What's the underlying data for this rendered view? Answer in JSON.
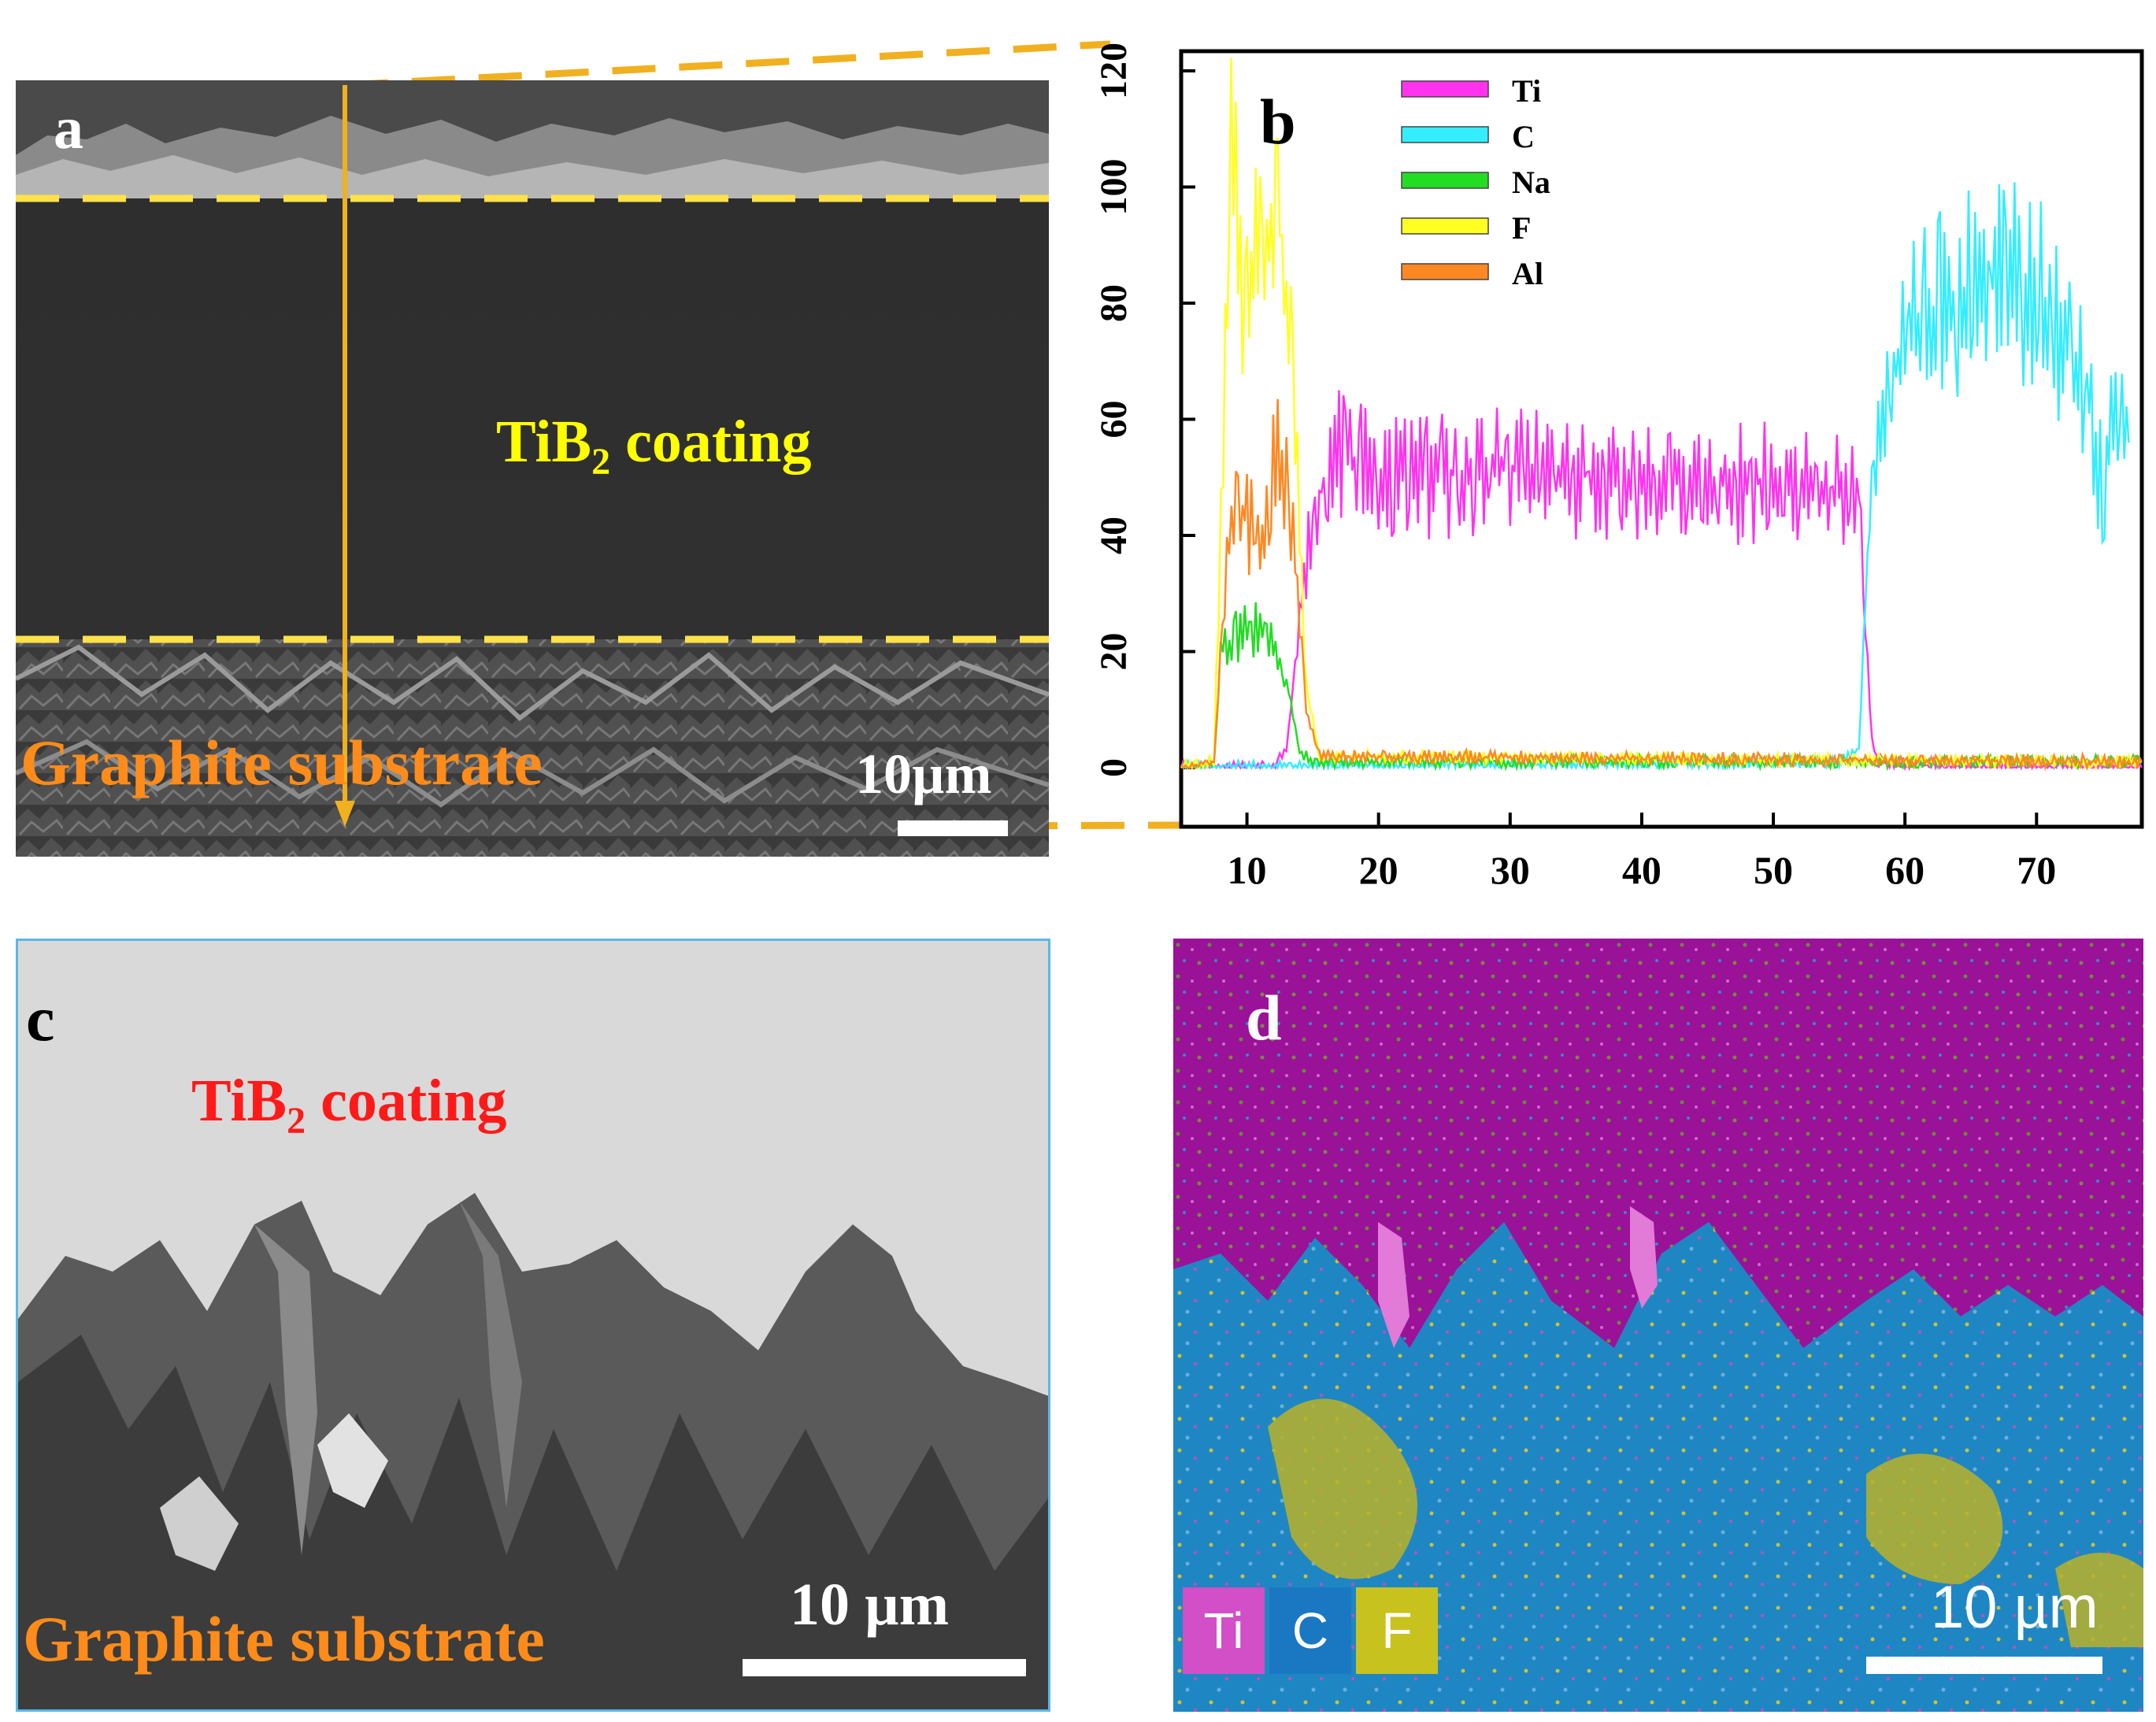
{
  "panel_a": {
    "letter": "a",
    "coating_label_main": "TiB",
    "coating_label_sub": "2",
    "coating_label_tail": " coating",
    "substrate_label": "Graphite substrate",
    "scale_bar": "10µm"
  },
  "panel_b": {
    "letter": "b"
  },
  "panel_c": {
    "letter": "c",
    "coating_label_main": "TiB",
    "coating_label_sub": "2",
    "coating_label_tail": " coating",
    "substrate_label": "Graphite substrate",
    "scale_bar": "10 µm"
  },
  "panel_d": {
    "letter": "d",
    "scale_bar": "10 µm",
    "legend": [
      {
        "label": "Ti",
        "color": "#d24fc7"
      },
      {
        "label": "C",
        "color": "#1a78c2"
      },
      {
        "label": "F",
        "color": "#c8c21e"
      }
    ]
  },
  "chart_data": {
    "type": "line",
    "xlabel": "",
    "ylabel": "",
    "xlim": [
      5,
      78
    ],
    "ylim": [
      0,
      120
    ],
    "x_ticks": [
      "10",
      "20",
      "30",
      "40",
      "50",
      "60",
      "70"
    ],
    "y_ticks": [
      "0",
      "20",
      "40",
      "60",
      "80",
      "100",
      "120"
    ],
    "legend_position": "top-left",
    "series": [
      {
        "name": "Ti",
        "color": "#ff33ee",
        "points": [
          [
            5,
            0
          ],
          [
            9,
            0
          ],
          [
            12,
            0
          ],
          [
            13,
            3
          ],
          [
            14,
            25
          ],
          [
            15,
            45
          ],
          [
            17,
            55
          ],
          [
            20,
            50
          ],
          [
            25,
            50
          ],
          [
            30,
            52
          ],
          [
            35,
            50
          ],
          [
            40,
            50
          ],
          [
            45,
            49
          ],
          [
            50,
            49
          ],
          [
            55,
            48
          ],
          [
            56.5,
            47
          ],
          [
            57,
            25
          ],
          [
            57.5,
            4
          ],
          [
            58,
            1
          ],
          [
            65,
            0
          ],
          [
            78,
            0
          ]
        ]
      },
      {
        "name": "C",
        "color": "#33eeff",
        "points": [
          [
            5,
            0
          ],
          [
            55,
            1
          ],
          [
            56.5,
            3
          ],
          [
            57,
            30
          ],
          [
            57.8,
            60
          ],
          [
            60,
            73
          ],
          [
            63,
            80
          ],
          [
            66,
            85
          ],
          [
            70,
            82
          ],
          [
            72,
            75
          ],
          [
            74,
            62
          ],
          [
            75,
            48
          ],
          [
            76,
            60
          ],
          [
            77,
            56
          ]
        ]
      },
      {
        "name": "Na",
        "color": "#22dd22",
        "points": [
          [
            5,
            0
          ],
          [
            7.5,
            1
          ],
          [
            8,
            20
          ],
          [
            10,
            24
          ],
          [
            12,
            22
          ],
          [
            13,
            15
          ],
          [
            14,
            3
          ],
          [
            15,
            1
          ],
          [
            78,
            1
          ]
        ]
      },
      {
        "name": "F",
        "color": "#ffff22",
        "points": [
          [
            5,
            0
          ],
          [
            7.5,
            1
          ],
          [
            8.2,
            60
          ],
          [
            8.8,
            108
          ],
          [
            9.5,
            85
          ],
          [
            11,
            90
          ],
          [
            12.5,
            93
          ],
          [
            13.5,
            70
          ],
          [
            14.5,
            15
          ],
          [
            15.5,
            2
          ],
          [
            78,
            1
          ]
        ]
      },
      {
        "name": "Al",
        "color": "#ff8822",
        "points": [
          [
            5,
            0
          ],
          [
            7.5,
            1
          ],
          [
            8.3,
            30
          ],
          [
            9,
            45
          ],
          [
            11,
            40
          ],
          [
            12.5,
            55
          ],
          [
            13.5,
            40
          ],
          [
            14.5,
            10
          ],
          [
            15.5,
            2
          ],
          [
            78,
            1
          ]
        ]
      }
    ]
  }
}
